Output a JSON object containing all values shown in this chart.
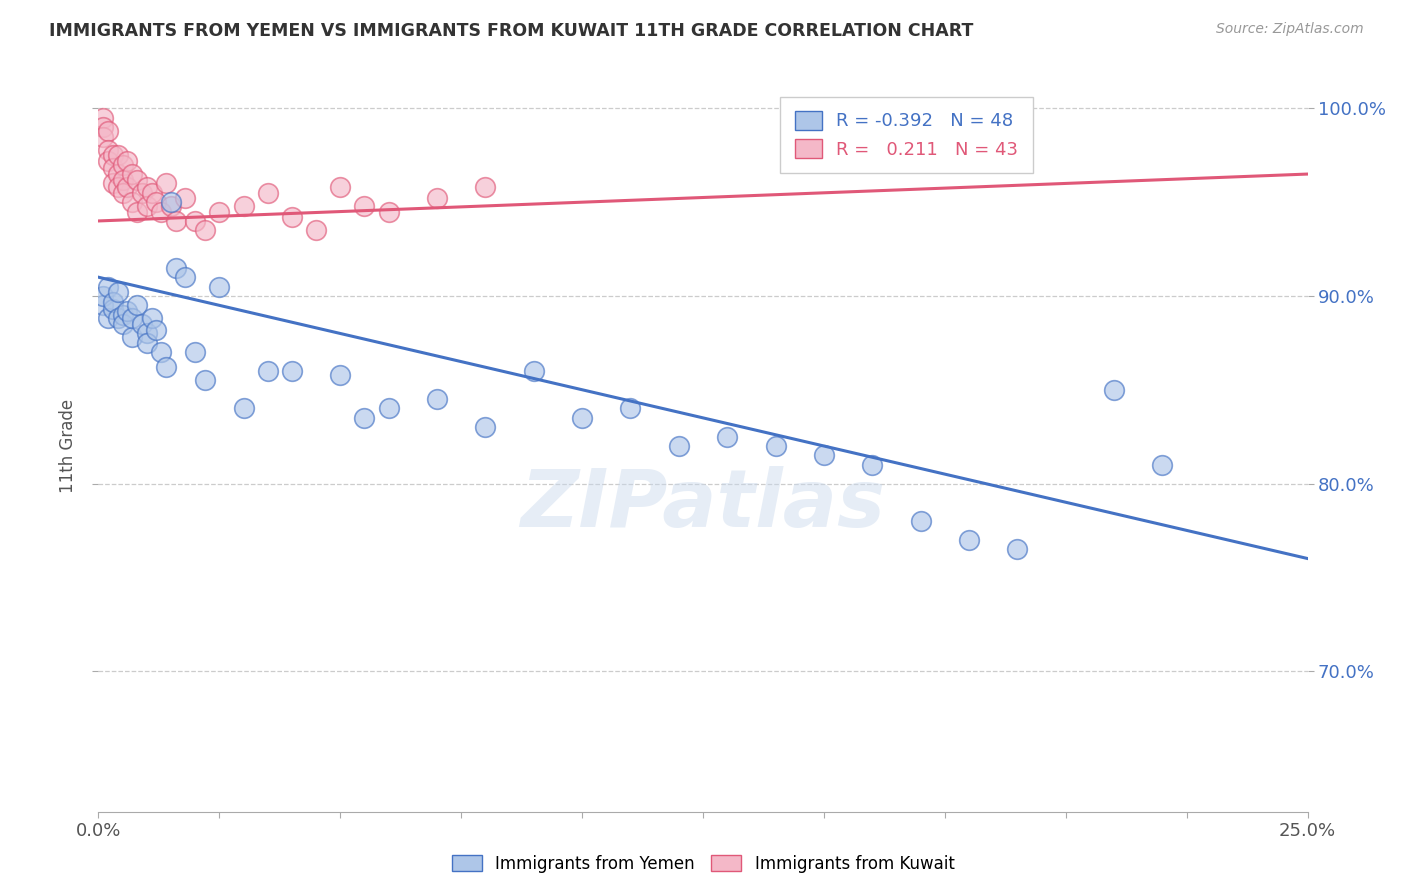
{
  "title": "IMMIGRANTS FROM YEMEN VS IMMIGRANTS FROM KUWAIT 11TH GRADE CORRELATION CHART",
  "source": "Source: ZipAtlas.com",
  "ylabel": "11th Grade",
  "x_min": 0.0,
  "x_max": 0.25,
  "y_min": 0.625,
  "y_max": 1.015,
  "x_ticks": [
    0.0,
    0.025,
    0.05,
    0.075,
    0.1,
    0.125,
    0.15,
    0.175,
    0.2,
    0.225,
    0.25
  ],
  "y_ticks": [
    0.7,
    0.8,
    0.9,
    1.0
  ],
  "y_tick_labels": [
    "70.0%",
    "80.0%",
    "90.0%",
    "100.0%"
  ],
  "legend_r_yemen": "-0.392",
  "legend_n_yemen": "48",
  "legend_r_kuwait": "0.211",
  "legend_n_kuwait": "43",
  "color_yemen": "#aec6e8",
  "color_kuwait": "#f4b8c8",
  "line_color_yemen": "#4472c4",
  "line_color_kuwait": "#e05878",
  "watermark": "ZIPatlas",
  "yemen_x": [
    0.001,
    0.001,
    0.002,
    0.002,
    0.003,
    0.003,
    0.004,
    0.004,
    0.005,
    0.005,
    0.006,
    0.007,
    0.007,
    0.008,
    0.009,
    0.01,
    0.01,
    0.011,
    0.012,
    0.013,
    0.014,
    0.015,
    0.016,
    0.018,
    0.02,
    0.022,
    0.025,
    0.03,
    0.035,
    0.04,
    0.05,
    0.055,
    0.06,
    0.07,
    0.08,
    0.09,
    0.1,
    0.11,
    0.12,
    0.13,
    0.14,
    0.15,
    0.16,
    0.17,
    0.18,
    0.19,
    0.21,
    0.22
  ],
  "yemen_y": [
    0.895,
    0.9,
    0.888,
    0.905,
    0.893,
    0.897,
    0.888,
    0.902,
    0.89,
    0.885,
    0.892,
    0.878,
    0.888,
    0.895,
    0.885,
    0.88,
    0.875,
    0.888,
    0.882,
    0.87,
    0.862,
    0.95,
    0.915,
    0.91,
    0.87,
    0.855,
    0.905,
    0.84,
    0.86,
    0.86,
    0.858,
    0.835,
    0.84,
    0.845,
    0.83,
    0.86,
    0.835,
    0.84,
    0.82,
    0.825,
    0.82,
    0.815,
    0.81,
    0.78,
    0.77,
    0.765,
    0.85,
    0.81
  ],
  "kuwait_x": [
    0.001,
    0.001,
    0.001,
    0.002,
    0.002,
    0.002,
    0.003,
    0.003,
    0.003,
    0.004,
    0.004,
    0.004,
    0.005,
    0.005,
    0.005,
    0.006,
    0.006,
    0.007,
    0.007,
    0.008,
    0.008,
    0.009,
    0.01,
    0.01,
    0.011,
    0.012,
    0.013,
    0.014,
    0.015,
    0.016,
    0.018,
    0.02,
    0.022,
    0.025,
    0.03,
    0.035,
    0.04,
    0.045,
    0.05,
    0.055,
    0.06,
    0.07,
    0.08
  ],
  "kuwait_y": [
    0.995,
    0.99,
    0.985,
    0.988,
    0.978,
    0.972,
    0.975,
    0.968,
    0.96,
    0.975,
    0.965,
    0.958,
    0.97,
    0.962,
    0.955,
    0.972,
    0.958,
    0.965,
    0.95,
    0.962,
    0.945,
    0.955,
    0.958,
    0.948,
    0.955,
    0.95,
    0.945,
    0.96,
    0.948,
    0.94,
    0.952,
    0.94,
    0.935,
    0.945,
    0.948,
    0.955,
    0.942,
    0.935,
    0.958,
    0.948,
    0.945,
    0.952,
    0.958
  ],
  "yemen_line_x0": 0.0,
  "yemen_line_x1": 0.25,
  "yemen_line_y0": 0.91,
  "yemen_line_y1": 0.76,
  "kuwait_line_x0": 0.0,
  "kuwait_line_x1": 0.25,
  "kuwait_line_y0": 0.94,
  "kuwait_line_y1": 0.965
}
